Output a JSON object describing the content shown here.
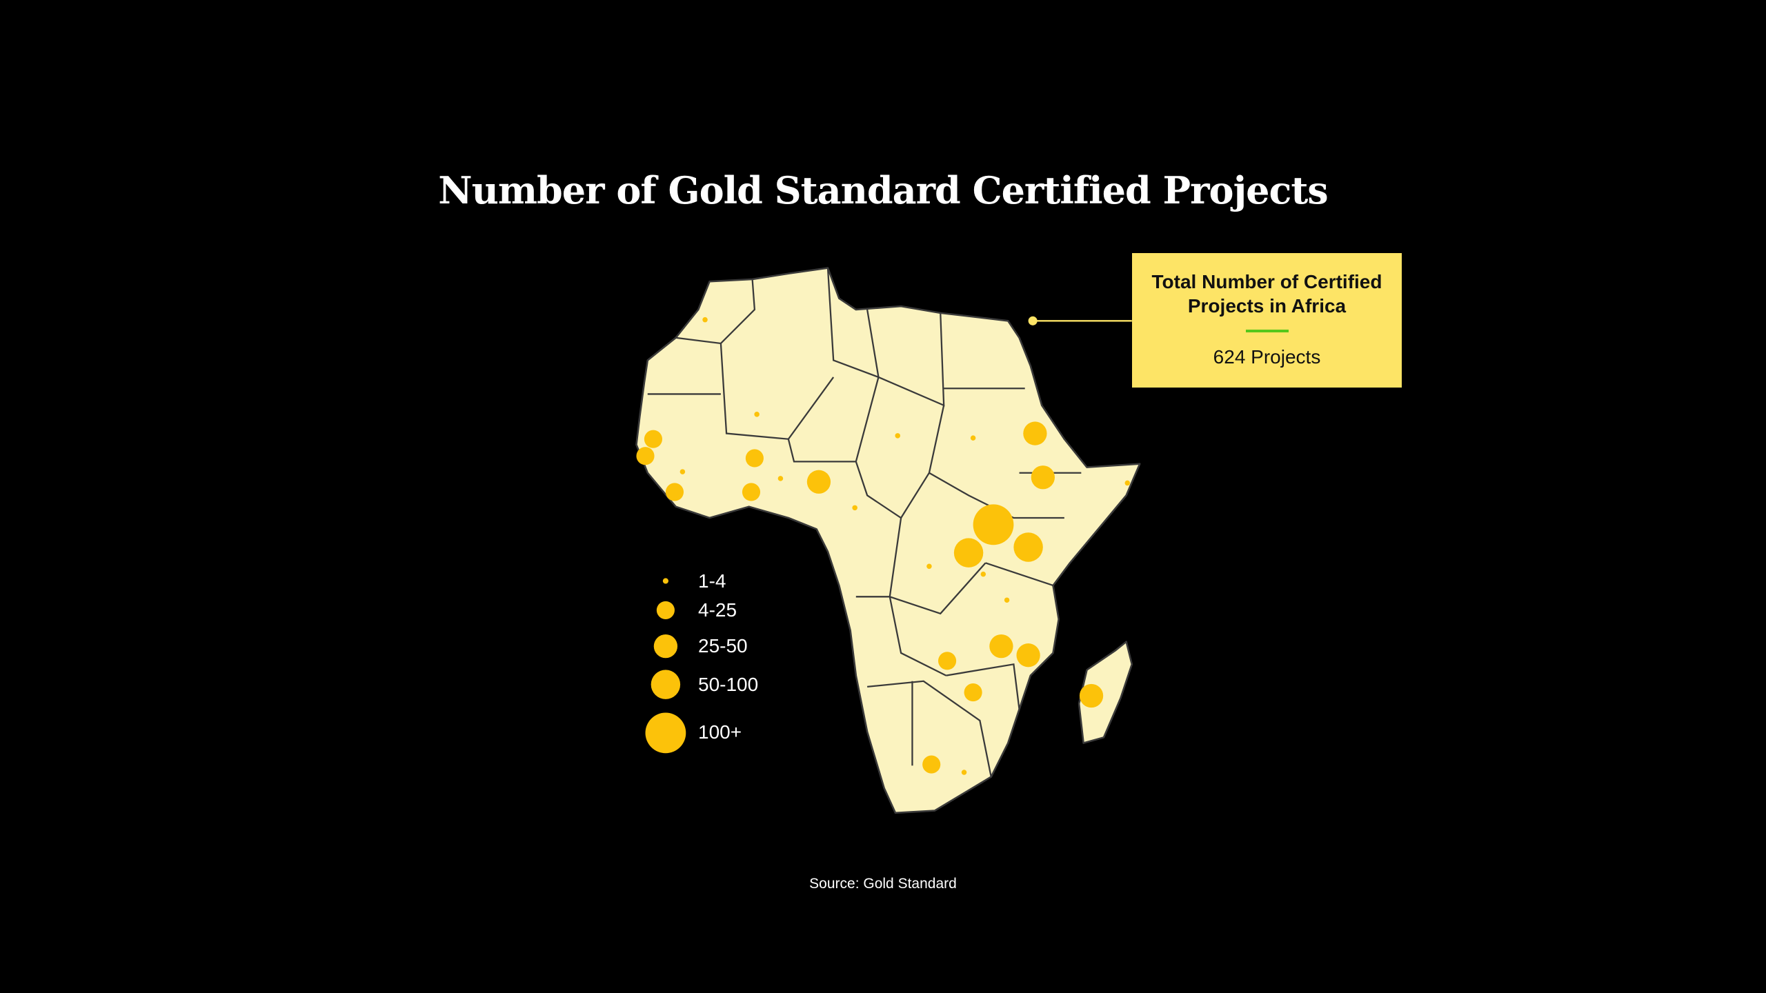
{
  "title": "Number of Gold Standard Certified Projects",
  "callout": {
    "heading": "Total Number of Certified Projects in Africa",
    "value": "624 Projects"
  },
  "source": "Source: Gold Standard",
  "colors": {
    "background": "#000000",
    "land": "#fbf3c0",
    "border": "#3a3a3a",
    "bubble": "#fcc20a",
    "callout_bg": "#fde466",
    "callout_rule": "#55c71b"
  },
  "chart_data": {
    "type": "bubble-map",
    "region": "Africa",
    "legend": {
      "title": "",
      "placement": "left",
      "categories": [
        "1-4",
        "4-25",
        "25-50",
        "50-100",
        "100+"
      ]
    },
    "bubble_categories": [
      "1-4",
      "1-4",
      "4-25",
      "4-25",
      "1-4",
      "4-25",
      "4-25",
      "4-25",
      "1-4",
      "25-50",
      "1-4",
      "1-4",
      "1-4",
      "25-50",
      "25-50",
      "1-4",
      "100+",
      "50-100",
      "50-100",
      "1-4",
      "1-4",
      "1-4",
      "25-50",
      "25-50",
      "4-25",
      "4-25",
      "25-50",
      "4-25",
      "1-4"
    ]
  }
}
